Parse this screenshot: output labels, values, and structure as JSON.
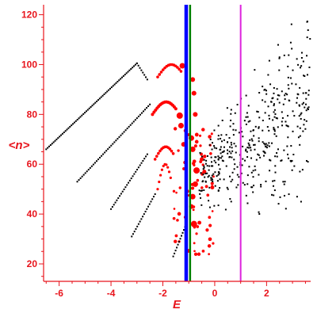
{
  "chart_data": {
    "type": "scatter",
    "title": "",
    "xlabel": "E",
    "ylabel": "<n>",
    "xlim": [
      -6.6,
      3.7
    ],
    "ylim": [
      13,
      124
    ],
    "x_ticks": [
      -6,
      -4,
      -2,
      0,
      2
    ],
    "y_ticks": [
      20,
      40,
      60,
      80,
      100,
      120
    ],
    "grid": false,
    "legend": "none",
    "colors": {
      "axis": "#e8141c",
      "black_points": "#000000",
      "red_points": "#ff0000",
      "vline_blue": "#0000ff",
      "vline_green": "#008000",
      "vline_magenta": "#dd22dd"
    },
    "vertical_lines": [
      {
        "x": -1.1,
        "color": "#0000ff"
      },
      {
        "x": -0.95,
        "color": "#008000"
      },
      {
        "x": 1.0,
        "color": "#dd22dd"
      }
    ],
    "black_chains": [
      {
        "x0": -6.5,
        "y0": 66,
        "x1": -3.0,
        "y1": 100.5,
        "n": 62
      },
      {
        "x0": -3.0,
        "y0": 100.5,
        "x1": -2.6,
        "y1": 94,
        "n": 8
      },
      {
        "x0": -5.3,
        "y0": 53,
        "x1": -2.5,
        "y1": 84,
        "n": 46
      },
      {
        "x0": -4.0,
        "y0": 42,
        "x1": -2.6,
        "y1": 64,
        "n": 26
      },
      {
        "x0": -3.2,
        "y0": 31,
        "x1": -2.3,
        "y1": 48,
        "n": 18
      },
      {
        "x0": -1.6,
        "y0": 23,
        "x1": -1.1,
        "y1": 36,
        "n": 12
      }
    ],
    "red_arcs": [
      {
        "x0": -2.2,
        "y0": 95,
        "x1": -1.3,
        "y1": 100,
        "n": 14,
        "size": 1.8
      },
      {
        "x0": -2.4,
        "y0": 80,
        "x1": -1.5,
        "y1": 85,
        "n": 16,
        "size": 2.0
      },
      {
        "x0": -2.3,
        "y0": 62,
        "x1": -1.6,
        "y1": 67,
        "n": 12,
        "size": 1.8
      },
      {
        "x0": -2.2,
        "y0": 50,
        "x1": -1.7,
        "y1": 60,
        "n": 10,
        "size": 1.6
      }
    ],
    "red_big_points": [
      {
        "x": -1.25,
        "y": 99.5,
        "r": 3.5
      },
      {
        "x": -1.35,
        "y": 79.5,
        "r": 4.0
      },
      {
        "x": -1.3,
        "y": 75.5,
        "r": 3.5
      },
      {
        "x": -1.2,
        "y": 68.0,
        "r": 3.0
      },
      {
        "x": -0.85,
        "y": 94.0,
        "r": 3.0
      },
      {
        "x": -0.8,
        "y": 88.5,
        "r": 3.0
      },
      {
        "x": -0.75,
        "y": 80.0,
        "r": 3.0
      },
      {
        "x": -0.9,
        "y": 70.5,
        "r": 3.5
      },
      {
        "x": -0.85,
        "y": 66.0,
        "r": 3.5
      },
      {
        "x": -0.7,
        "y": 57.5,
        "r": 4.0
      },
      {
        "x": -0.75,
        "y": 52.0,
        "r": 3.5
      },
      {
        "x": -0.85,
        "y": 47.0,
        "r": 3.5
      },
      {
        "x": -0.9,
        "y": 43.0,
        "r": 3.0
      },
      {
        "x": -0.8,
        "y": 36.0,
        "r": 4.0
      },
      {
        "x": -0.5,
        "y": 62.0,
        "r": 2.5
      },
      {
        "x": -0.4,
        "y": 57.0,
        "r": 2.5
      }
    ],
    "red_scatter_region": {
      "x": [
        -1.6,
        0.0
      ],
      "y": [
        23,
        75
      ],
      "n": 70
    },
    "black_cloud_region": {
      "x": [
        -0.6,
        3.7
      ],
      "y": [
        28,
        123
      ],
      "n": 420
    }
  }
}
